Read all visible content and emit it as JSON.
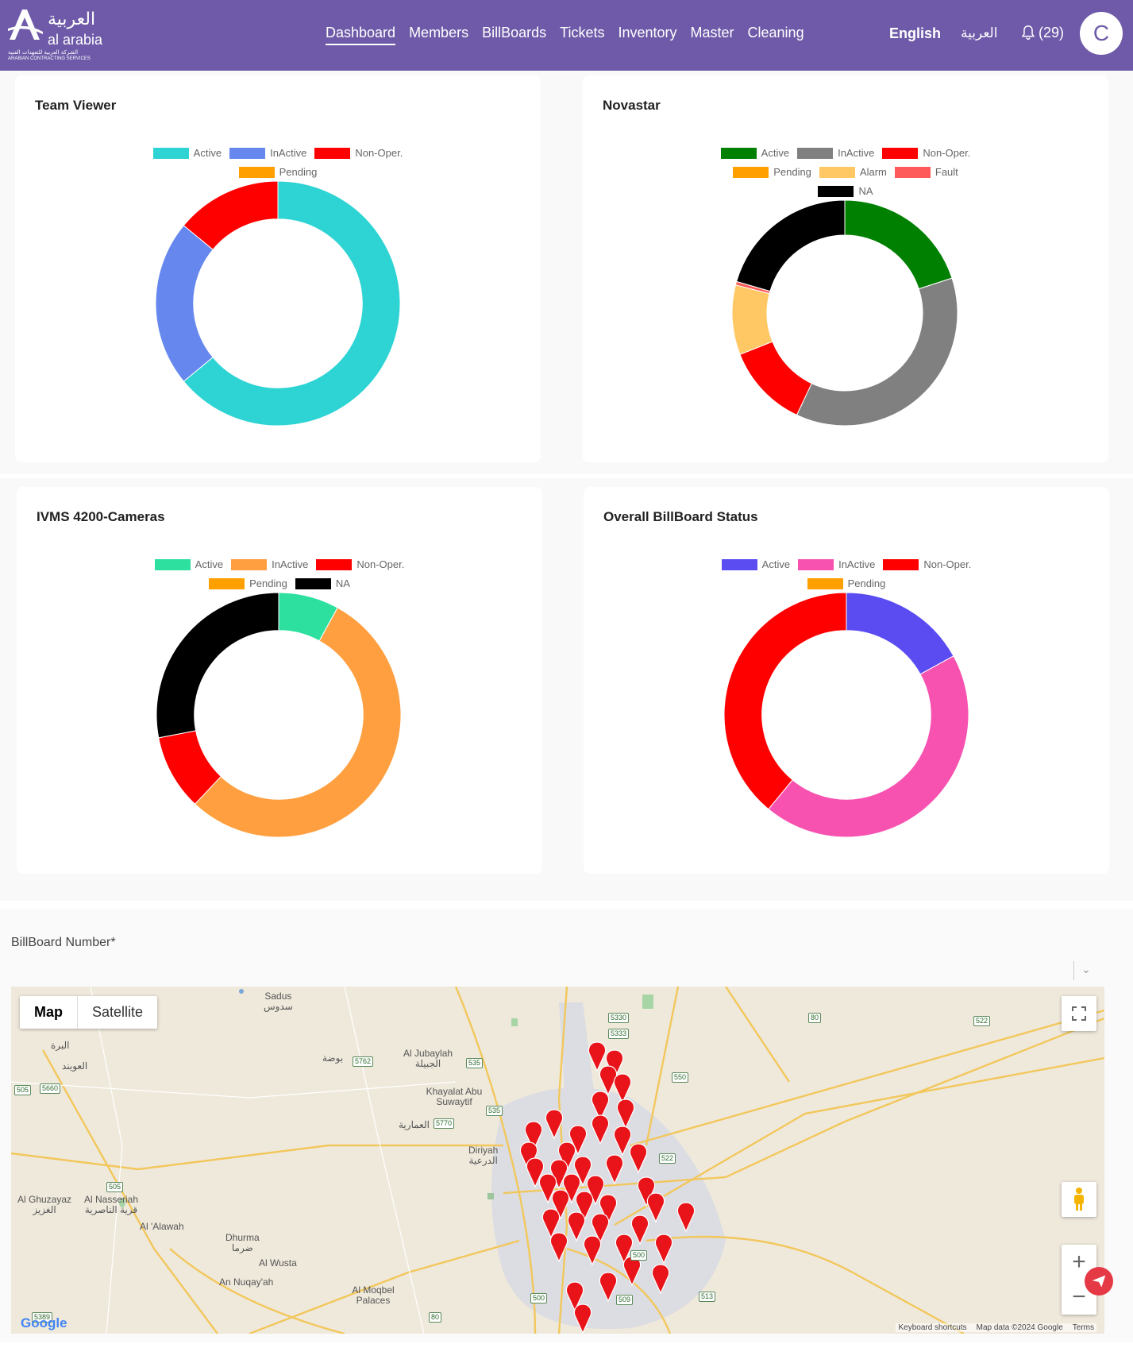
{
  "header": {
    "logo_ar": "العربية",
    "logo_en": "al arabia",
    "logo_sub_ar": "الشركة العربية للتعهدات الفنية",
    "logo_sub_en": "ARABIAN CONTRACTING SERVICES",
    "nav": [
      "Dashboard",
      "Members",
      "BillBoards",
      "Tickets",
      "Inventory",
      "Master",
      "Cleaning"
    ],
    "active_nav": "Dashboard",
    "lang_en": "English",
    "lang_ar": "العربية",
    "notif_count": "(29)",
    "avatar_letter": "C"
  },
  "charts": [
    {
      "title": "Team Viewer",
      "legend_rows": [
        [
          0,
          1,
          2
        ],
        [
          3
        ]
      ],
      "chart_data": {
        "type": "doughnut",
        "labels": [
          "Active",
          "InActive",
          "Non-Oper.",
          "Pending"
        ],
        "values": [
          64,
          22,
          14,
          0
        ],
        "colors": [
          "#2ed3d4",
          "#6688ee",
          "#ff0000",
          "#ff9f00"
        ]
      }
    },
    {
      "title": "Novastar",
      "legend_rows": [
        [
          0,
          1,
          2
        ],
        [
          3,
          4,
          5
        ],
        [
          6
        ]
      ],
      "chart_data": {
        "type": "doughnut",
        "labels": [
          "Active",
          "InActive",
          "Non-Oper.",
          "Pending",
          "Alarm",
          "Fault",
          "NA"
        ],
        "values": [
          20,
          37,
          12,
          0,
          10,
          0.5,
          20.5
        ],
        "colors": [
          "#008000",
          "#808080",
          "#ff0000",
          "#ff9f00",
          "#ffc864",
          "#ff5a5a",
          "#000000"
        ]
      }
    },
    {
      "title": "IVMS 4200-Cameras",
      "legend_rows": [
        [
          0,
          1,
          2
        ],
        [
          3,
          4
        ]
      ],
      "chart_data": {
        "type": "doughnut",
        "labels": [
          "Active",
          "InActive",
          "Non-Oper.",
          "Pending",
          "NA"
        ],
        "values": [
          8,
          54,
          10,
          0,
          28
        ],
        "colors": [
          "#2de0a0",
          "#ff9f40",
          "#ff0000",
          "#ff9f00",
          "#000000"
        ]
      }
    },
    {
      "title": "Overall BillBoard Status",
      "legend_rows": [
        [
          0,
          1,
          2
        ],
        [
          3
        ]
      ],
      "chart_data": {
        "type": "doughnut",
        "labels": [
          "Active",
          "InActive",
          "Non-Oper.",
          "Pending"
        ],
        "values": [
          17,
          44,
          39,
          0
        ],
        "colors": [
          "#5a4cf0",
          "#f752b0",
          "#ff0000",
          "#ff9f00"
        ]
      }
    }
  ],
  "billboard": {
    "label": "BillBoard Number*"
  },
  "map": {
    "type_map": "Map",
    "type_satellite": "Satellite",
    "places": [
      {
        "en": "Sadus",
        "ar": "سدوس"
      },
      {
        "en": "",
        "ar": "البرة"
      },
      {
        "en": "",
        "ar": "العويند"
      },
      {
        "en": "",
        "ar": "بوضة"
      },
      {
        "en": "Al Jubaylah",
        "ar": "الجبيلة"
      },
      {
        "en": "Khayalat Abu Suwaytif",
        "ar": ""
      },
      {
        "en": "",
        "ar": "العمارية"
      },
      {
        "en": "Diriyah",
        "ar": "الدرعية"
      },
      {
        "en": "Al Ghuzayaz",
        "ar": "الغزيز"
      },
      {
        "en": "Al Nasseriah",
        "ar": "قرية الناصرية"
      },
      {
        "en": "Al 'Alawah",
        "ar": ""
      },
      {
        "en": "Dhurma",
        "ar": "ضرما"
      },
      {
        "en": "Al Wusta",
        "ar": ""
      },
      {
        "en": "An Nuqay'ah",
        "ar": ""
      },
      {
        "en": "Al Moqbel Palaces",
        "ar": ""
      }
    ],
    "roads": [
      "5330",
      "5333",
      "80",
      "522",
      "5762",
      "535",
      "550",
      "5770",
      "535",
      "505",
      "5660",
      "522",
      "505",
      "500",
      "500",
      "509",
      "513",
      "80",
      "5389"
    ],
    "footer_keys": "Keyboard shortcuts",
    "footer_data": "Map data ©2024 Google",
    "footer_terms": "Terms",
    "google": "Google"
  }
}
